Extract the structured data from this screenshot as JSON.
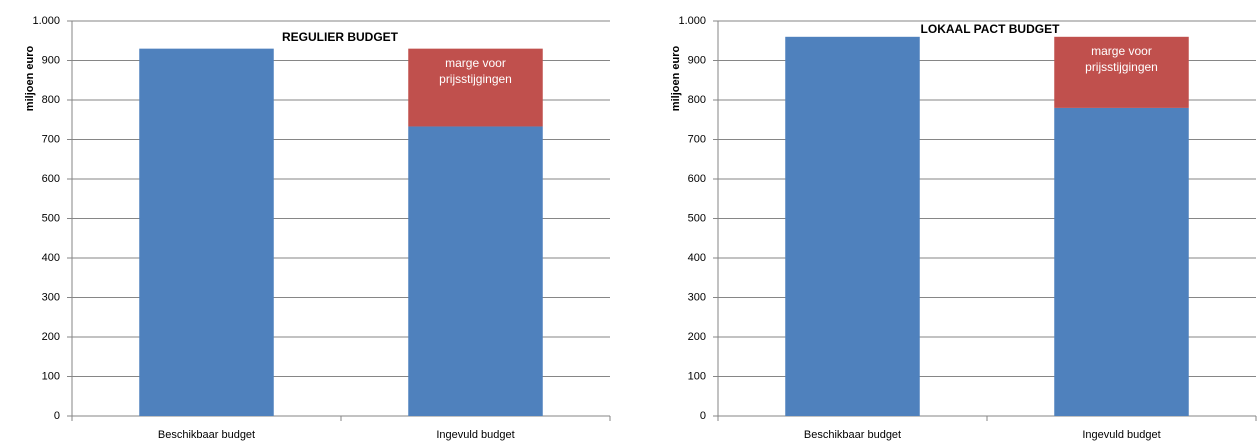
{
  "chart_data": [
    {
      "type": "stacked-bar",
      "title": "REGULIER BUDGET",
      "y_label": "miljoen euro",
      "categories": [
        "Beschikbaar budget",
        "Ingevuld budget"
      ],
      "series": [
        {
          "color": "#4f81bd",
          "values": [
            930,
            733
          ]
        },
        {
          "name": "marge voor prijsstijgingen",
          "color": "#c0504d",
          "values": [
            null,
            197
          ]
        }
      ],
      "ylim": [
        0,
        1000
      ],
      "yticks": [
        0,
        100,
        200,
        300,
        400,
        500,
        600,
        700,
        800,
        900,
        {
          "value": 1000,
          "label": "1.000"
        }
      ],
      "grid": true,
      "title_color": "#9bbb59"
    },
    {
      "type": "stacked-bar",
      "title": "LOKAAL PACT BUDGET",
      "y_label": "miljoen euro",
      "categories": [
        "Beschikbaar budget",
        "Ingevuld budget"
      ],
      "series": [
        {
          "color": "#4f81bd",
          "values": [
            960,
            780
          ]
        },
        {
          "name": "marge voor prijsstijgingen",
          "color": "#c0504d",
          "values": [
            null,
            180
          ]
        }
      ],
      "ylim": [
        0,
        1000
      ],
      "yticks": [
        0,
        100,
        200,
        300,
        400,
        500,
        600,
        700,
        800,
        900,
        {
          "value": 1000,
          "label": "1.000"
        }
      ],
      "grid": true,
      "title_color": "#9bbb59"
    }
  ]
}
